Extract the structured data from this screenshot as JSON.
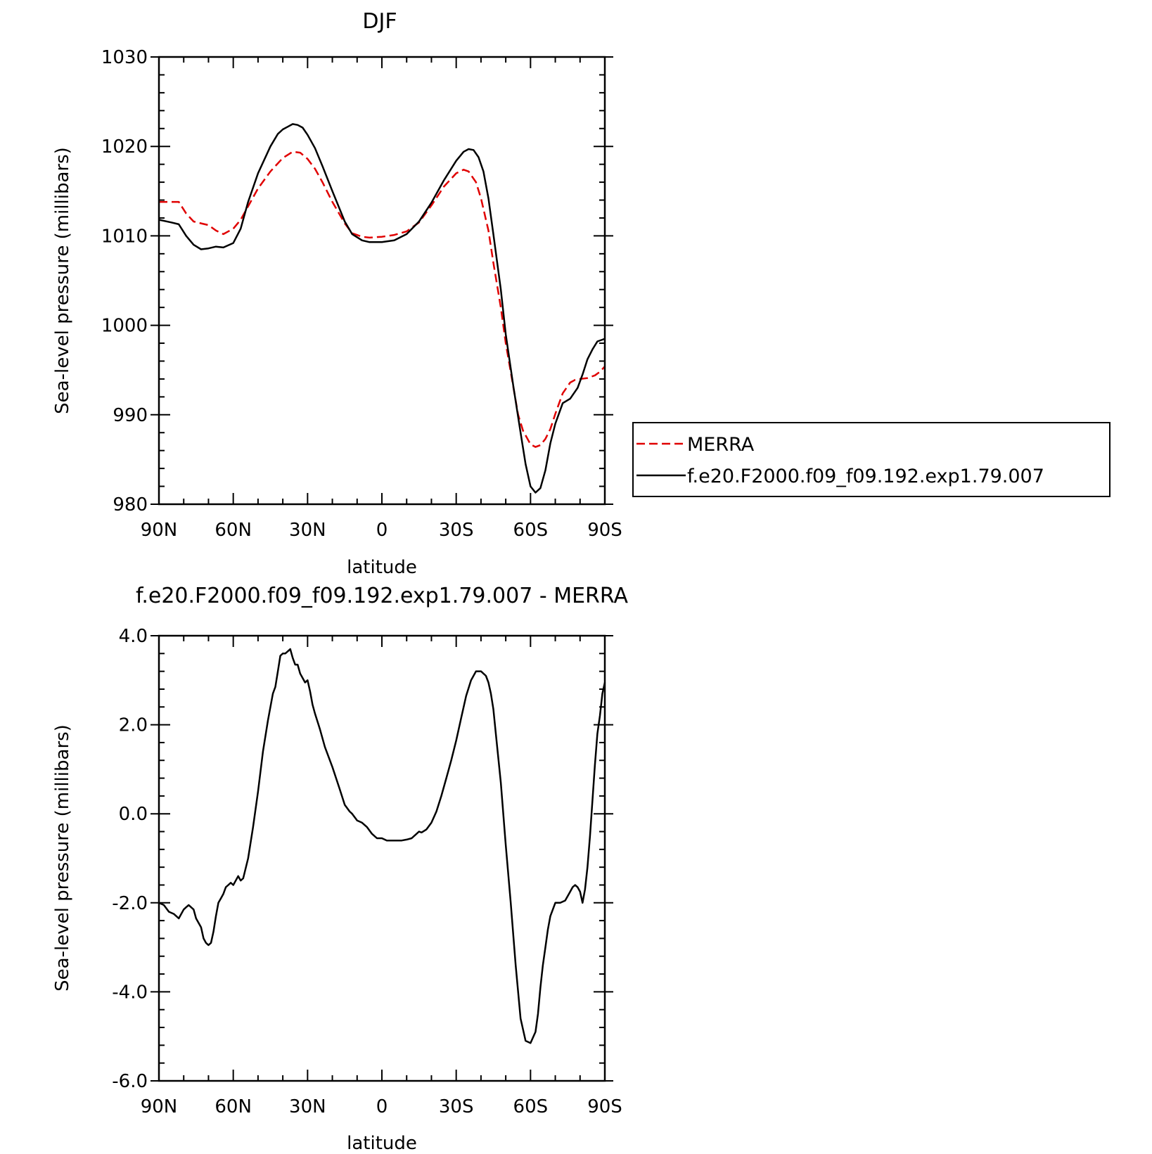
{
  "chart_data": [
    {
      "type": "line",
      "title": "DJF",
      "xlabel": "latitude",
      "ylabel": "Sea-level pressure (millibars)",
      "xlim": [
        90,
        -90
      ],
      "ylim": [
        980,
        1030
      ],
      "xticks": [
        90,
        60,
        30,
        0,
        -30,
        -60,
        -90
      ],
      "xtick_labels": [
        "90N",
        "60N",
        "30N",
        "0",
        "30S",
        "60S",
        "90S"
      ],
      "yticks": [
        980,
        990,
        1000,
        1010,
        1020,
        1030
      ],
      "ytick_labels": [
        "980",
        "990",
        "1000",
        "1010",
        "1020",
        "1030"
      ],
      "legend": {
        "placement": "right"
      },
      "series": [
        {
          "name": "MERRA",
          "color": "#e00000",
          "dash": "dashed",
          "x": [
            90,
            84,
            82,
            79,
            76,
            73,
            70,
            67,
            64,
            60,
            57,
            54,
            50,
            45,
            40,
            36,
            33,
            30,
            27,
            24,
            20,
            15,
            12,
            8,
            5,
            0,
            -5,
            -10,
            -15,
            -20,
            -25,
            -30,
            -33,
            -35,
            -38,
            -40,
            -43,
            -45,
            -48,
            -50,
            -53,
            -55,
            -57,
            -60,
            -62,
            -64,
            -66,
            -68,
            -70,
            -73,
            -76,
            -78,
            -80,
            -83,
            -86,
            -88,
            -90
          ],
          "y": [
            1013.8,
            1013.8,
            1013.8,
            1012.5,
            1011.6,
            1011.4,
            1011.2,
            1010.6,
            1010.2,
            1010.8,
            1011.8,
            1013.3,
            1015.3,
            1017.2,
            1018.7,
            1019.4,
            1019.3,
            1018.6,
            1017.5,
            1016.0,
            1013.8,
            1011.4,
            1010.3,
            1009.9,
            1009.8,
            1009.9,
            1010.1,
            1010.5,
            1011.5,
            1013.4,
            1015.5,
            1017.0,
            1017.4,
            1017.2,
            1016.0,
            1014.2,
            1010.6,
            1007.0,
            1002.0,
            998.0,
            993.2,
            990.0,
            988.2,
            986.7,
            986.4,
            986.6,
            987.3,
            988.4,
            990.1,
            992.4,
            993.6,
            993.9,
            994.0,
            994.1,
            994.4,
            994.8,
            995.4
          ]
        },
        {
          "name": "f.e20.F2000.f09_f09.192.exp1.79.007",
          "color": "#000000",
          "dash": "solid",
          "x": [
            90,
            85,
            82,
            79,
            76,
            73,
            70,
            67,
            64,
            60,
            57,
            54,
            50,
            45,
            42,
            40,
            38,
            36,
            34,
            32,
            30,
            27,
            24,
            20,
            15,
            12,
            8,
            5,
            0,
            -5,
            -10,
            -15,
            -20,
            -25,
            -30,
            -33,
            -35,
            -37,
            -39,
            -41,
            -43,
            -45,
            -48,
            -50,
            -53,
            -56,
            -58,
            -60,
            -62,
            -64,
            -66,
            -68,
            -70,
            -73,
            -76,
            -79,
            -81,
            -83,
            -85,
            -87,
            -89,
            -90
          ],
          "y": [
            1011.8,
            1011.5,
            1011.3,
            1010.0,
            1009.0,
            1008.5,
            1008.6,
            1008.8,
            1008.7,
            1009.2,
            1010.8,
            1013.8,
            1017.0,
            1020.0,
            1021.4,
            1021.9,
            1022.2,
            1022.5,
            1022.4,
            1022.1,
            1021.3,
            1019.8,
            1017.8,
            1015.0,
            1011.6,
            1010.2,
            1009.5,
            1009.3,
            1009.3,
            1009.5,
            1010.2,
            1011.6,
            1013.7,
            1016.2,
            1018.4,
            1019.4,
            1019.7,
            1019.6,
            1018.8,
            1017.2,
            1014.2,
            1010.2,
            1004.0,
            999.0,
            993.3,
            988.0,
            984.5,
            982.0,
            981.3,
            981.8,
            983.8,
            986.8,
            989.0,
            991.3,
            991.8,
            993.0,
            994.5,
            996.2,
            997.3,
            998.2,
            998.4,
            998.5
          ]
        }
      ]
    },
    {
      "type": "line",
      "title": "f.e20.F2000.f09_f09.192.exp1.79.007 - MERRA",
      "xlabel": "latitude",
      "ylabel": "Sea-level pressure (millibars)",
      "xlim": [
        90,
        -90
      ],
      "ylim": [
        -6.0,
        4.0
      ],
      "xticks": [
        90,
        60,
        30,
        0,
        -30,
        -60,
        -90
      ],
      "xtick_labels": [
        "90N",
        "60N",
        "30N",
        "0",
        "30S",
        "60S",
        "90S"
      ],
      "yticks": [
        -6,
        -4,
        -2,
        0,
        2,
        4
      ],
      "ytick_labels": [
        "-6.0",
        "-4.0",
        "-2.0",
        "0.0",
        "2.0",
        "4.0"
      ],
      "series": [
        {
          "color": "#000000",
          "dash": "solid",
          "x": [
            90,
            88,
            86,
            84,
            82,
            80,
            79,
            78,
            76,
            75,
            73,
            72,
            71,
            70,
            69,
            68,
            67,
            66,
            65,
            64,
            63,
            62,
            61,
            60,
            59,
            58,
            57,
            56,
            54,
            52,
            50,
            48,
            46,
            45,
            44,
            43,
            42,
            41,
            40,
            39,
            38,
            37,
            36,
            35,
            34,
            33,
            32,
            31,
            30,
            29,
            28,
            27,
            25,
            23,
            20,
            17,
            15,
            13,
            12,
            10,
            8,
            6,
            4,
            2,
            0,
            -2,
            -4,
            -6,
            -8,
            -10,
            -12,
            -14,
            -15,
            -16,
            -18,
            -20,
            -22,
            -24,
            -26,
            -28,
            -30,
            -32,
            -34,
            -36,
            -38,
            -40,
            -42,
            -43,
            -44,
            -45,
            -46,
            -48,
            -50,
            -52,
            -54,
            -56,
            -58,
            -60,
            -62,
            -63,
            -64,
            -65,
            -66,
            -67,
            -68,
            -70,
            -72,
            -74,
            -75,
            -76,
            -77,
            -78,
            -79,
            -80,
            -81,
            -82,
            -83,
            -84,
            -85,
            -86,
            -87,
            -88,
            -89,
            -90
          ],
          "y": [
            -2.0,
            -2.05,
            -2.2,
            -2.25,
            -2.35,
            -2.15,
            -2.1,
            -2.05,
            -2.15,
            -2.35,
            -2.55,
            -2.8,
            -2.9,
            -2.95,
            -2.9,
            -2.65,
            -2.3,
            -2.0,
            -1.9,
            -1.8,
            -1.65,
            -1.6,
            -1.55,
            -1.6,
            -1.5,
            -1.4,
            -1.5,
            -1.45,
            -1.0,
            -0.3,
            0.5,
            1.4,
            2.1,
            2.4,
            2.7,
            2.85,
            3.2,
            3.55,
            3.6,
            3.6,
            3.65,
            3.7,
            3.5,
            3.35,
            3.35,
            3.15,
            3.05,
            2.95,
            3.0,
            2.75,
            2.45,
            2.25,
            1.9,
            1.5,
            1.05,
            0.55,
            0.2,
            0.05,
            0.0,
            -0.15,
            -0.2,
            -0.3,
            -0.45,
            -0.55,
            -0.55,
            -0.6,
            -0.6,
            -0.6,
            -0.6,
            -0.58,
            -0.55,
            -0.45,
            -0.4,
            -0.42,
            -0.35,
            -0.2,
            0.05,
            0.4,
            0.8,
            1.2,
            1.65,
            2.15,
            2.65,
            3.0,
            3.2,
            3.2,
            3.1,
            2.95,
            2.7,
            2.35,
            1.8,
            0.7,
            -0.7,
            -2.0,
            -3.4,
            -4.6,
            -5.1,
            -5.15,
            -4.9,
            -4.5,
            -3.9,
            -3.4,
            -3.0,
            -2.6,
            -2.3,
            -2.0,
            -2.0,
            -1.95,
            -1.85,
            -1.75,
            -1.65,
            -1.6,
            -1.65,
            -1.75,
            -2.0,
            -1.7,
            -1.2,
            -0.5,
            0.3,
            1.1,
            1.8,
            2.2,
            2.7,
            2.95
          ]
        }
      ]
    }
  ]
}
